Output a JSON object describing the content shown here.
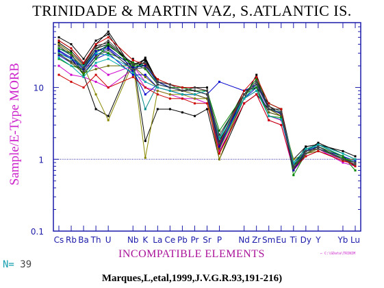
{
  "chart_data": {
    "type": "line",
    "title": "TRINIDADE & MARTIN VAZ, S.ATLANTIC IS.",
    "ylabel": "Sample/E-Type MORB",
    "xlabel": "INCOMPATIBLE ELEMENTS",
    "y_scale": "log",
    "ylim": [
      0.1,
      80
    ],
    "y_ticks": [
      "0.1",
      "1",
      "10"
    ],
    "reference_line": 1,
    "x_ticks": [
      "Cs",
      "Rb",
      "Ba",
      "Th",
      "U",
      "Nb",
      "K",
      "La",
      "Ce",
      "Pb",
      "Pr",
      "Sr",
      "P",
      "Nd",
      "Zr",
      "Sm",
      "Eu",
      "Ti",
      "Dy",
      "Y",
      "Yb",
      "Lu"
    ],
    "tick_slots": [
      0,
      1,
      2,
      3,
      4,
      6,
      7,
      8,
      9,
      10,
      11,
      12,
      13,
      15,
      16,
      17,
      18,
      19,
      20,
      21,
      23,
      24
    ],
    "series": [
      {
        "color": "#000000",
        "values": [
          40,
          30,
          20,
          35,
          40,
          20,
          25,
          12,
          10,
          9,
          10,
          9,
          1.5,
          8,
          12,
          5,
          4.5,
          0.7,
          1.2,
          1.5,
          1.0,
          0.9
        ]
      },
      {
        "color": "#000000",
        "values": [
          45,
          35,
          22,
          40,
          60,
          18,
          23,
          11,
          10,
          9,
          9,
          8,
          1.2,
          7,
          15,
          5,
          4,
          0.8,
          1.5,
          1.6,
          1.1,
          0.8
        ]
      },
      {
        "color": "#000000",
        "values": [
          38,
          28,
          18,
          32,
          38,
          22,
          20,
          13,
          11,
          10,
          10,
          9,
          2,
          9,
          10,
          6,
          5,
          0.9,
          1.3,
          1.7,
          1.2,
          1.0
        ]
      },
      {
        "color": "#000000",
        "values": [
          50,
          40,
          25,
          45,
          55,
          16,
          26,
          12,
          11,
          10,
          9,
          8,
          1.8,
          8,
          13,
          5,
          5,
          0.7,
          1.4,
          1.5,
          1.0,
          0.9
        ]
      },
      {
        "color": "#000000",
        "values": [
          42,
          32,
          21,
          38,
          42,
          21,
          24,
          12,
          10,
          9,
          10,
          10,
          1.4,
          8,
          11,
          5.5,
          4.2,
          0.75,
          1.2,
          1.4,
          1.0,
          0.85
        ]
      },
      {
        "color": "#000000",
        "values": [
          30,
          25,
          15,
          5,
          4,
          25,
          1.8,
          5,
          5,
          4.5,
          4,
          5,
          1,
          6,
          8,
          5,
          4,
          1,
          1.5,
          1.6,
          1.3,
          1.1
        ]
      },
      {
        "color": "#cc00cc",
        "values": [
          35,
          30,
          20,
          20,
          15,
          20,
          12,
          10,
          9,
          8,
          8,
          7,
          1.5,
          7,
          9,
          4,
          3.5,
          0.8,
          1.2,
          1.4,
          0.9,
          0.8
        ]
      },
      {
        "color": "#cc00cc",
        "values": [
          20,
          15,
          14,
          12,
          10,
          18,
          10,
          9,
          8,
          7,
          7,
          6,
          1.3,
          6,
          8,
          3.5,
          3,
          0.7,
          1.1,
          1.3,
          1.0,
          0.9
        ]
      },
      {
        "color": "#008888",
        "values": [
          35,
          28,
          18,
          30,
          40,
          20,
          5,
          11,
          10,
          9,
          9,
          8,
          2,
          8,
          12,
          5,
          4.5,
          0.9,
          1.4,
          1.6,
          1.1,
          0.9
        ]
      },
      {
        "color": "#0000cc",
        "values": [
          28,
          22,
          16,
          25,
          30,
          15,
          15,
          10,
          9,
          8,
          8,
          7,
          1.6,
          7,
          10,
          4.5,
          4,
          0.85,
          1.3,
          1.5,
          1.0,
          0.8
        ]
      },
      {
        "color": "#0000cc",
        "values": [
          32,
          25,
          17,
          28,
          35,
          17,
          8,
          11,
          10,
          9,
          9,
          8,
          12,
          9,
          11,
          5,
          4.3,
          0.8,
          1.2,
          1.4,
          1.1,
          0.95
        ]
      },
      {
        "color": "#888800",
        "values": [
          40,
          30,
          20,
          8,
          3.5,
          22,
          1.05,
          9,
          8,
          8,
          7,
          7,
          1,
          8,
          12,
          5,
          4,
          1,
          1.2,
          1.4,
          1.0,
          1.0
        ]
      },
      {
        "color": "#666600",
        "values": [
          30,
          22,
          16,
          18,
          20,
          20,
          14,
          10,
          9,
          9,
          8,
          7,
          1.4,
          7,
          9,
          4.5,
          4,
          0.8,
          1.2,
          1.3,
          0.95,
          0.85
        ]
      },
      {
        "color": "#008800",
        "values": [
          25,
          20,
          18,
          35,
          30,
          22,
          18,
          11,
          10,
          9,
          9,
          9,
          2.5,
          8,
          10,
          4,
          3.8,
          0.75,
          1.3,
          1.4,
          1.05,
          0.9
        ]
      },
      {
        "color": "#008800",
        "values": [
          35,
          30,
          15,
          25,
          40,
          20,
          20,
          12,
          10,
          10,
          9,
          8,
          1.7,
          8,
          13,
          6,
          5,
          0.6,
          1.2,
          1.5,
          1.1,
          0.7
        ]
      },
      {
        "color": "#00aaaa",
        "values": [
          30,
          25,
          20,
          30,
          28,
          18,
          22,
          11,
          10,
          9,
          9,
          8,
          1.5,
          7,
          11,
          5,
          4.5,
          0.9,
          1.4,
          1.5,
          1.0,
          0.9
        ]
      },
      {
        "color": "#00aaaa",
        "values": [
          26,
          20,
          14,
          22,
          25,
          16,
          12,
          10,
          9,
          8,
          8,
          9,
          1.9,
          7,
          9,
          4,
          3.6,
          0.85,
          1.3,
          1.6,
          1.2,
          1.0
        ]
      },
      {
        "color": "#cc0000",
        "values": [
          45,
          35,
          22,
          40,
          50,
          24,
          21,
          13,
          11,
          10,
          10,
          9,
          1.6,
          9,
          14,
          6,
          5,
          0.7,
          1.3,
          1.5,
          1.0,
          0.8
        ]
      },
      {
        "color": "#cc0000",
        "values": [
          15,
          12,
          10,
          15,
          10,
          14,
          10,
          8,
          7,
          7,
          6,
          6,
          1.2,
          6,
          8,
          3.5,
          3,
          0.75,
          1.1,
          1.3,
          0.95,
          0.85
        ]
      },
      {
        "color": "#0000aa",
        "values": [
          33,
          26,
          18,
          32,
          36,
          19,
          20,
          12,
          10,
          9,
          9,
          8,
          1.5,
          8,
          12,
          5,
          4.4,
          0.7,
          1.3,
          1.5,
          1.0,
          0.9
        ]
      },
      {
        "color": "#444444",
        "values": [
          38,
          28,
          19,
          35,
          45,
          21,
          22,
          12,
          11,
          9,
          10,
          9,
          1.7,
          8,
          12,
          5.5,
          4.6,
          0.75,
          1.2,
          1.5,
          1.0,
          0.85
        ]
      },
      {
        "color": "#444444",
        "values": [
          29,
          23,
          17,
          27,
          33,
          18,
          19,
          11,
          10,
          9,
          9,
          8,
          2.2,
          8,
          11,
          5,
          4.4,
          0.8,
          1.3,
          1.4,
          1.0,
          0.9
        ]
      }
    ]
  },
  "footer": {
    "n_label": "N=",
    "n_value": "39",
    "citation": "Marques,L,etal,1999,J.V.G.R.93,191-216)",
    "file_label": "← C:\\GData\\TRINIM"
  }
}
